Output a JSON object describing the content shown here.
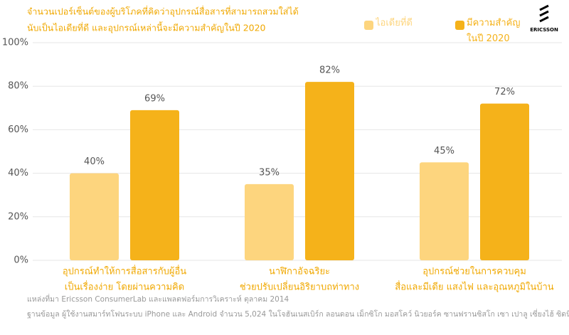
{
  "chart_data": {
    "type": "bar",
    "title": [
      "จำนวนเปอร์เซ็นต์ของผู้บริโภคที่คิดว่าอุปกรณ์สื่อสารที่สามารถสวมใส่ได้",
      "นับเป็นไอเดียที่ดี และอุปกรณ์เหล่านี้จะมีความสำคัญในปี 2020"
    ],
    "logo": "ERICSSON",
    "categories": [
      [
        "อุปกรณ์ทำให้การสื่อสารกับผู้อื่น",
        "เป็นเรื่องง่าย โดยผ่านความคิด"
      ],
      [
        "นาฬิกาอัจฉริยะ",
        "ช่วยปรับเปลี่ยนอิริยาบถท่าทาง"
      ],
      [
        "อุปกรณ์ช่วยในการควบคุม",
        "สื่อและมีเดีย แสงไฟ และอุณหภูมิในบ้าน"
      ]
    ],
    "series": [
      {
        "name": "ไอเดียที่ดี",
        "color": "#fdd57e",
        "values": [
          40,
          35,
          45
        ],
        "value_labels": [
          "40%",
          "35%",
          "45%"
        ]
      },
      {
        "name": "มีความสำคัญ ในปี 2020",
        "color": "#f5b21a",
        "values": [
          69,
          82,
          72
        ],
        "value_labels": [
          "69%",
          "82%",
          "72%"
        ]
      }
    ],
    "ylim": [
      0,
      100
    ],
    "yticks": [
      {
        "value": 0,
        "label": "0%"
      },
      {
        "value": 20,
        "label": "20%"
      },
      {
        "value": 40,
        "label": "40%"
      },
      {
        "value": 60,
        "label": "60%"
      },
      {
        "value": 80,
        "label": "80%"
      },
      {
        "value": 100,
        "label": "100%"
      }
    ],
    "grid": true,
    "notes": [
      "แหล่งที่มา Ericsson ConsumerLab และแพลตฟอร์มการวิเคราะห์ ตุลาคม 2014",
      "ฐานข้อมูล ผู้ใช้งานสมาร์ทโฟนระบบ iPhone และ Android จำนวน 5,024 ในโจฮันเนสเบิร์ก ลอนดอน เม็กซิโก มอสโคว์ นิวยอร์ค ซานฟรานซิสโก เซา เปาลู เซี่ยงไฮ้ ซิดนีย์ โตเกียว"
    ]
  }
}
